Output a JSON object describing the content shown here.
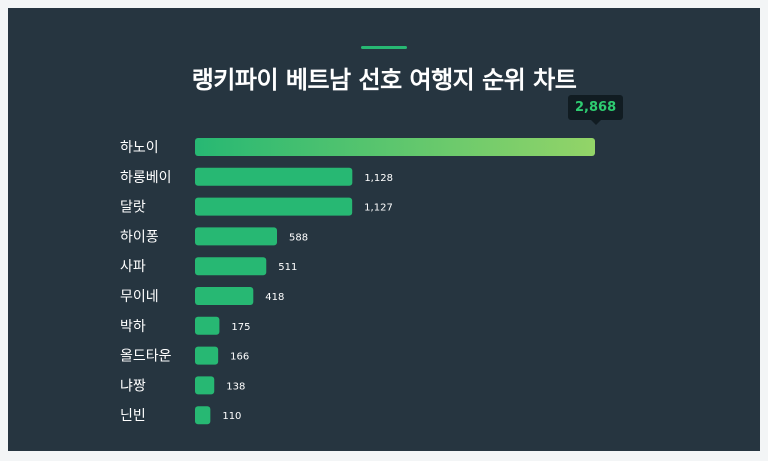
{
  "chart_data": {
    "type": "bar",
    "orientation": "horizontal",
    "title": "랭키파이 베트남 선호 여행지 순위 차트",
    "categories": [
      "하노이",
      "하롱베이",
      "달랏",
      "하이퐁",
      "사파",
      "무이네",
      "박하",
      "올드타운",
      "냐짱",
      "닌빈"
    ],
    "values": [
      2868,
      1128,
      1127,
      588,
      511,
      418,
      175,
      166,
      138,
      110
    ],
    "value_labels": [
      "2,868",
      "1,128",
      "1,127",
      "588",
      "511",
      "418",
      "175",
      "166",
      "138",
      "110"
    ],
    "highlight_index": 0,
    "xlim": [
      0,
      2868
    ],
    "grid": false
  },
  "colors": {
    "background": "#263540",
    "bar": "#27b873",
    "highlight_start": "#27b873",
    "highlight_end": "#93d468",
    "tooltip_text": "#2ecc71"
  }
}
